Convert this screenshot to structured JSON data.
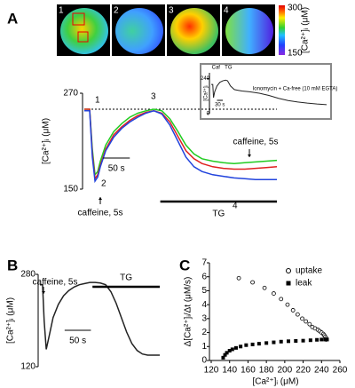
{
  "images": {
    "labels": [
      "1",
      "2",
      "3",
      "4"
    ],
    "colorbar_ticks": [
      300,
      150
    ],
    "colorbar_label": "[Ca²⁺]ᵢ (μM)"
  },
  "chart_data": [
    {
      "type": "line",
      "panel": "A",
      "ylabel": "[Ca²⁺]ᵢ (μM)",
      "x": [
        0,
        10,
        15,
        20,
        25,
        30,
        40,
        55,
        70,
        85,
        100,
        115,
        130,
        145,
        160,
        175,
        190,
        205,
        220,
        240,
        260,
        280,
        300,
        320,
        340,
        360
      ],
      "xlim": [
        0,
        360
      ],
      "ylim": [
        150,
        270
      ],
      "yticks": [
        150,
        270
      ],
      "series": [
        {
          "color": "#22cc22",
          "values": [
            250,
            250,
            200,
            168,
            172,
            185,
            205,
            222,
            232,
            240,
            245,
            248,
            250,
            248,
            238,
            222,
            205,
            194,
            188,
            185,
            183,
            182,
            183,
            184,
            185,
            186
          ]
        },
        {
          "color": "#e02020",
          "values": [
            250,
            250,
            195,
            163,
            168,
            180,
            200,
            218,
            228,
            236,
            242,
            246,
            248,
            245,
            234,
            216,
            198,
            188,
            182,
            178,
            176,
            175,
            175,
            176,
            177,
            178
          ]
        },
        {
          "color": "#2244dd",
          "values": [
            248,
            248,
            190,
            160,
            165,
            178,
            198,
            215,
            226,
            234,
            240,
            245,
            248,
            244,
            230,
            210,
            190,
            178,
            172,
            168,
            166,
            164,
            163,
            162,
            162,
            162
          ]
        }
      ],
      "points": [
        "1",
        "2",
        "3",
        "4"
      ],
      "stimulus": [
        "caffeine, 5s",
        "caffeine, 5s"
      ],
      "dashed_line": 250,
      "tg": {
        "label": "TG",
        "start": 142
      },
      "scalebar": {
        "label": "50 s",
        "value": 50
      }
    },
    {
      "type": "line",
      "panel": "inset",
      "ylabel": "[Ca²⁺]ᵢ",
      "x": [
        0,
        8,
        12,
        18,
        30,
        45,
        60,
        75,
        85,
        100,
        120,
        140,
        160,
        200,
        250,
        300,
        350,
        400,
        450,
        500,
        550,
        600
      ],
      "xlim": [
        0,
        600
      ],
      "ylim": [
        0,
        280
      ],
      "yticks": [
        0,
        240
      ],
      "series": [
        {
          "color": "#222222",
          "values": [
            200,
            200,
            110,
            150,
            190,
            215,
            225,
            230,
            225,
            190,
            165,
            160,
            155,
            150,
            140,
            125,
            105,
            90,
            80,
            72,
            66,
            62
          ]
        }
      ],
      "annotations": [
        "Caf",
        "TG",
        "Ionomycin + Ca-free (10 mM EGTA)"
      ],
      "scalebar": {
        "label": "30 s",
        "value": 30
      }
    },
    {
      "type": "line",
      "panel": "B",
      "ylabel": "[Ca²⁺]ᵢ (μM)",
      "x": [
        0,
        5,
        8,
        12,
        18,
        25,
        35,
        45,
        55,
        65,
        75,
        85,
        95,
        105,
        115,
        125,
        135,
        145,
        155,
        165,
        175,
        185,
        195,
        205,
        215,
        228
      ],
      "xlim": [
        0,
        228
      ],
      "ylim": [
        120,
        280
      ],
      "yticks": [
        120,
        280
      ],
      "series": [
        {
          "color": "#222222",
          "values": [
            262,
            262,
            200,
            150,
            175,
            205,
            228,
            243,
            252,
            258,
            262,
            264,
            266,
            266,
            265,
            262,
            250,
            230,
            205,
            180,
            160,
            148,
            142,
            140,
            140,
            140
          ]
        }
      ],
      "stimulus": [
        "caffeine, 5s"
      ],
      "tg": {
        "label": "TG",
        "start": 100
      },
      "scalebar": {
        "label": "50 s",
        "value": 50
      }
    },
    {
      "type": "scatter",
      "panel": "C",
      "xlabel": "[Ca²⁺]ᵢ (μM)",
      "ylabel": "Δ[Ca²⁺]ᵢ/Δt (μM/s)",
      "xlim": [
        120,
        260
      ],
      "xticks": [
        120,
        140,
        160,
        180,
        200,
        220,
        240,
        260
      ],
      "ylim": [
        0,
        7
      ],
      "yticks": [
        0,
        1,
        2,
        3,
        4,
        5,
        6,
        7
      ],
      "series": [
        {
          "name": "uptake",
          "marker": "circle",
          "color": "#000000",
          "x": [
            150,
            165,
            178,
            188,
            196,
            203,
            209,
            214,
            219,
            223,
            227,
            230,
            233,
            236,
            238,
            240,
            242,
            243,
            244,
            245,
            245
          ],
          "values": [
            5.9,
            5.6,
            5.2,
            4.8,
            4.4,
            4.0,
            3.6,
            3.3,
            3.0,
            2.8,
            2.6,
            2.4,
            2.3,
            2.2,
            2.1,
            2.0,
            1.9,
            1.8,
            1.7,
            1.6,
            1.5
          ]
        },
        {
          "name": "leak",
          "marker": "square",
          "color": "#000000",
          "x": [
            133,
            135,
            137,
            140,
            143,
            147,
            152,
            158,
            165,
            172,
            180,
            188,
            196,
            204,
            212,
            220,
            228,
            235,
            240,
            244,
            246
          ],
          "values": [
            0.2,
            0.4,
            0.55,
            0.7,
            0.8,
            0.9,
            1.0,
            1.1,
            1.15,
            1.2,
            1.25,
            1.3,
            1.35,
            1.38,
            1.4,
            1.42,
            1.45,
            1.48,
            1.5,
            1.5,
            1.5
          ]
        }
      ]
    }
  ]
}
